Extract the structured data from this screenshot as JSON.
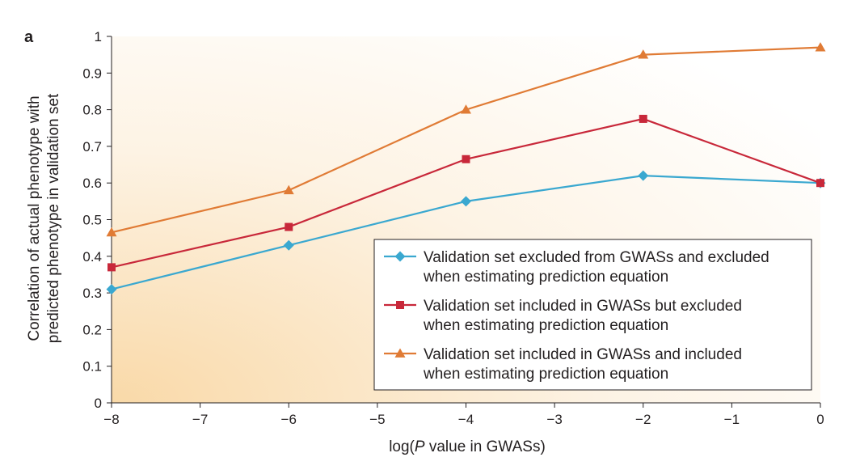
{
  "panel_label": "a",
  "chart_data": {
    "type": "line",
    "x": [
      -8,
      -6,
      -4,
      -2,
      0
    ],
    "x_ticks": [
      -8,
      -7,
      -6,
      -5,
      -4,
      -3,
      -2,
      -1,
      0
    ],
    "x_tick_labels": [
      "−8",
      "−7",
      "−6",
      "−5",
      "−4",
      "−3",
      "−2",
      "−1",
      "0"
    ],
    "y_ticks": [
      0,
      0.1,
      0.2,
      0.3,
      0.4,
      0.5,
      0.6,
      0.7,
      0.8,
      0.9,
      1
    ],
    "y_tick_labels": [
      "0",
      "0.1",
      "0.2",
      "0.3",
      "0.4",
      "0.5",
      "0.6",
      "0.7",
      "0.8",
      "0.9",
      "1"
    ],
    "xlim": [
      -8,
      0
    ],
    "ylim": [
      0,
      1
    ],
    "xlabel_prefix": "log(",
    "xlabel_italic": "P",
    "xlabel_suffix": " value in GWASs)",
    "ylabel_line1": "Correlation of actual phenotype with",
    "ylabel_line2": "predicted phenotype in validation set",
    "grid": false,
    "legend_position": "bottom-right",
    "series": [
      {
        "name_line1": "Validation set excluded from GWASs and excluded",
        "name_line2": "when estimating prediction equation",
        "marker": "diamond",
        "color": "#3aa8d0",
        "values": [
          0.31,
          0.43,
          0.55,
          0.62,
          0.6
        ]
      },
      {
        "name_line1": "Validation set included in GWASs but excluded",
        "name_line2": "when estimating prediction equation",
        "marker": "square",
        "color": "#c8283a",
        "values": [
          0.37,
          0.48,
          0.665,
          0.775,
          0.6
        ]
      },
      {
        "name_line1": "Validation set included in GWASs and included",
        "name_line2": "when estimating prediction equation",
        "marker": "triangle",
        "color": "#e07b35",
        "values": [
          0.465,
          0.58,
          0.8,
          0.95,
          0.97
        ]
      }
    ],
    "background_gradient": [
      "#f9d9a8",
      "#fdf3e4",
      "#ffffff"
    ]
  }
}
